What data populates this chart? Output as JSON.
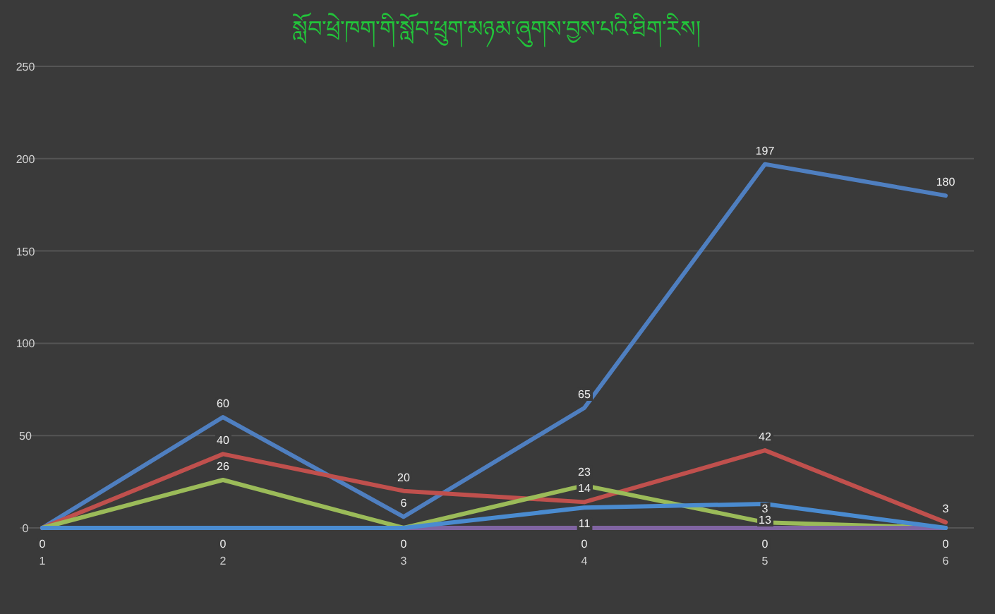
{
  "chart_data": {
    "type": "line",
    "title": "སློབ་ཕྲེ་ཁག་གི་སློབ་ཕྲུག་མཉམ་ཞུགས་བྱས་པའི་ཐིག་རིས།",
    "categories": [
      "1",
      "2",
      "3",
      "4",
      "5",
      "6"
    ],
    "series": [
      {
        "color": "#4f7fc0",
        "values": [
          0,
          60,
          6,
          65,
          197,
          180
        ],
        "value_labels": [
          "0",
          "60",
          "6",
          "65",
          "197",
          "180"
        ]
      },
      {
        "color": "#c0504d",
        "values": [
          0,
          40,
          20,
          14,
          42,
          3
        ],
        "value_labels": [
          null,
          "40",
          "20",
          "14",
          "42",
          "3"
        ]
      },
      {
        "color": "#9bbb59",
        "values": [
          0,
          26,
          0,
          23,
          3,
          0
        ],
        "value_labels": [
          null,
          "26",
          null,
          "23",
          "3",
          null
        ]
      },
      {
        "color": "#8064a2",
        "values": [
          0,
          0,
          0,
          0,
          0,
          0
        ],
        "value_labels": [
          null,
          "0",
          "0",
          "0",
          "0",
          "0"
        ]
      },
      {
        "color": "#4a8bd0",
        "values": [
          0,
          0,
          0,
          11,
          13,
          0
        ],
        "value_labels": [
          null,
          null,
          null,
          "11",
          "13",
          null
        ]
      }
    ],
    "ylim": [
      0,
      250
    ],
    "yticks": [
      0,
      50,
      100,
      150,
      200,
      250
    ],
    "grid": "y",
    "marker": "none",
    "line_style": "solid"
  }
}
